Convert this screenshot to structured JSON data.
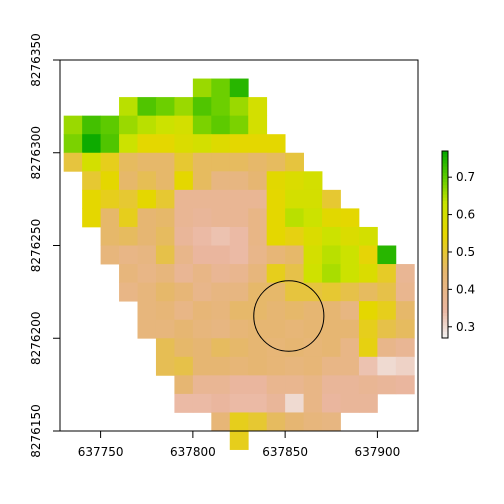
{
  "chart_data": {
    "type": "heatmap",
    "title": "",
    "xlabel": "",
    "ylabel": "",
    "xlim": [
      637728,
      637922
    ],
    "ylim": [
      8276150,
      8276350
    ],
    "cell_size": 10,
    "x_origin": 637730,
    "y_top": 8276340,
    "x_ticks": [
      637750,
      637800,
      637850,
      637900
    ],
    "x_tick_labels": [
      "637750",
      "637800",
      "637850",
      "637900"
    ],
    "y_ticks": [
      8276150,
      8276200,
      8276250,
      8276300,
      8276350
    ],
    "y_tick_labels": [
      "8276150",
      "8276200",
      "8276250",
      "8276300",
      "8276350"
    ],
    "colorbar": {
      "min": 0.27,
      "max": 0.77,
      "ticks": [
        0.3,
        0.4,
        0.5,
        0.6,
        0.7
      ],
      "tick_labels": [
        "0.3",
        "0.4",
        "0.5",
        "0.6",
        "0.7"
      ],
      "palette": "terrain (reversed)"
    },
    "grid": [
      [
        null,
        null,
        null,
        null,
        null,
        null,
        null,
        0.66,
        0.69,
        0.74,
        null,
        null,
        null,
        null,
        null,
        null,
        null,
        null,
        null
      ],
      [
        null,
        null,
        null,
        0.64,
        0.71,
        0.69,
        0.66,
        0.71,
        0.69,
        0.66,
        0.6,
        null,
        null,
        null,
        null,
        null,
        null,
        null,
        null
      ],
      [
        0.66,
        0.72,
        0.7,
        0.66,
        0.64,
        0.62,
        0.6,
        0.68,
        0.7,
        0.68,
        0.6,
        null,
        null,
        null,
        null,
        null,
        null,
        null,
        null
      ],
      [
        0.68,
        0.76,
        0.71,
        0.62,
        0.55,
        0.55,
        0.58,
        0.6,
        0.57,
        0.55,
        0.55,
        0.55,
        null,
        null,
        null,
        null,
        null,
        null,
        null
      ],
      [
        0.49,
        0.6,
        0.52,
        0.46,
        0.45,
        0.45,
        0.5,
        0.46,
        0.46,
        0.46,
        0.45,
        0.46,
        0.49,
        null,
        null,
        null,
        null,
        null,
        null
      ],
      [
        null,
        0.5,
        0.55,
        0.45,
        0.47,
        0.45,
        0.55,
        0.46,
        0.41,
        0.41,
        0.44,
        0.56,
        0.58,
        0.6,
        null,
        null,
        null,
        null,
        null
      ],
      [
        null,
        0.55,
        0.52,
        0.5,
        0.55,
        0.5,
        0.37,
        0.37,
        0.37,
        0.37,
        0.37,
        0.55,
        0.6,
        0.6,
        0.5,
        null,
        null,
        null,
        null
      ],
      [
        null,
        0.55,
        0.45,
        0.52,
        0.44,
        0.45,
        0.37,
        0.36,
        0.37,
        0.37,
        0.4,
        0.55,
        0.64,
        0.62,
        0.56,
        0.55,
        null,
        null,
        null
      ],
      [
        null,
        null,
        0.45,
        0.46,
        0.44,
        0.46,
        0.36,
        0.34,
        0.33,
        0.34,
        0.4,
        0.55,
        0.53,
        0.58,
        0.62,
        0.58,
        0.6,
        null,
        null
      ],
      [
        null,
        null,
        0.42,
        0.4,
        0.41,
        0.48,
        0.39,
        0.35,
        0.35,
        0.34,
        0.39,
        0.43,
        0.45,
        0.6,
        0.64,
        0.62,
        0.54,
        0.74,
        null
      ],
      [
        null,
        null,
        null,
        0.42,
        0.4,
        0.42,
        0.37,
        0.4,
        0.37,
        0.38,
        0.42,
        0.52,
        0.48,
        0.61,
        0.65,
        0.62,
        0.58,
        0.51,
        0.37
      ],
      [
        null,
        null,
        null,
        0.4,
        0.42,
        0.45,
        0.43,
        0.39,
        0.41,
        0.41,
        0.45,
        0.45,
        0.49,
        0.49,
        0.5,
        0.48,
        0.46,
        0.48,
        0.38
      ],
      [
        null,
        null,
        null,
        null,
        0.42,
        0.43,
        0.4,
        0.43,
        0.42,
        0.45,
        0.45,
        0.44,
        0.45,
        0.44,
        0.44,
        0.41,
        0.55,
        0.52,
        0.45
      ],
      [
        null,
        null,
        null,
        null,
        0.42,
        0.42,
        0.44,
        0.42,
        0.41,
        0.43,
        0.44,
        0.44,
        0.43,
        0.44,
        0.44,
        0.44,
        0.52,
        0.48,
        0.46
      ],
      [
        null,
        null,
        null,
        null,
        null,
        0.47,
        0.45,
        0.44,
        0.46,
        0.45,
        0.44,
        0.43,
        0.44,
        0.43,
        0.44,
        0.4,
        0.53,
        0.39,
        0.37
      ],
      [
        null,
        null,
        null,
        null,
        null,
        0.47,
        0.48,
        0.44,
        0.44,
        0.43,
        0.44,
        0.43,
        0.42,
        0.43,
        0.4,
        0.4,
        0.33,
        0.3,
        0.31
      ],
      [
        null,
        null,
        null,
        null,
        null,
        null,
        0.44,
        0.37,
        0.37,
        0.35,
        0.35,
        0.38,
        0.38,
        0.4,
        0.36,
        0.36,
        0.37,
        0.36,
        0.35
      ],
      [
        null,
        null,
        null,
        null,
        null,
        null,
        0.34,
        0.34,
        0.35,
        0.34,
        0.34,
        0.36,
        0.3,
        0.4,
        0.35,
        0.36,
        0.36,
        null,
        null
      ],
      [
        null,
        null,
        null,
        null,
        null,
        null,
        null,
        null,
        0.43,
        0.52,
        0.5,
        0.46,
        0.44,
        0.42,
        0.41,
        null,
        null,
        null,
        null
      ],
      [
        null,
        null,
        null,
        null,
        null,
        null,
        null,
        null,
        null,
        0.52,
        null,
        null,
        null,
        null,
        null,
        null,
        null,
        null,
        null
      ]
    ],
    "circle": {
      "cx": 637852,
      "cy": 8276212,
      "r": 19
    }
  }
}
